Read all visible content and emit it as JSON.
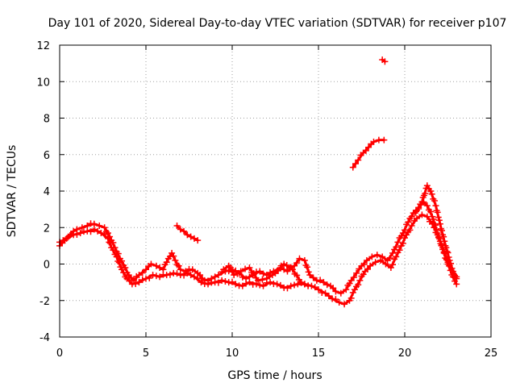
{
  "chart_data": {
    "type": "scatter",
    "title": "Day 101 of 2020, Sidereal Day-to-day VTEC variation (SDTVAR) for receiver p107",
    "xlabel": "GPS time / hours",
    "ylabel": "SDTVAR / TECUs",
    "xlim": [
      0,
      25
    ],
    "ylim": [
      -4,
      12
    ],
    "xticks": [
      0,
      5,
      10,
      15,
      20,
      25
    ],
    "yticks": [
      -4,
      -2,
      0,
      2,
      4,
      6,
      8,
      10,
      12
    ],
    "grid": true,
    "series_color": "#ff0000",
    "series": [
      {
        "name": "upper trace",
        "points": [
          [
            0.0,
            1.0
          ],
          [
            0.3,
            1.3
          ],
          [
            0.5,
            1.5
          ],
          [
            0.8,
            1.8
          ],
          [
            1.0,
            1.9
          ],
          [
            1.3,
            2.0
          ],
          [
            1.6,
            2.1
          ],
          [
            2.0,
            2.2
          ],
          [
            2.3,
            2.1
          ],
          [
            2.6,
            2.0
          ],
          [
            2.8,
            1.7
          ],
          [
            3.0,
            1.3
          ],
          [
            3.2,
            0.9
          ],
          [
            3.5,
            0.3
          ],
          [
            3.8,
            -0.2
          ],
          [
            4.0,
            -0.6
          ],
          [
            4.3,
            -0.9
          ],
          [
            4.6,
            -0.6
          ],
          [
            5.0,
            -0.3
          ],
          [
            5.3,
            0.0
          ],
          [
            5.6,
            -0.1
          ],
          [
            6.0,
            -0.3
          ],
          [
            6.3,
            0.3
          ],
          [
            6.5,
            0.6
          ],
          [
            6.7,
            0.2
          ],
          [
            7.0,
            -0.3
          ],
          [
            7.3,
            -0.4
          ],
          [
            7.7,
            -0.3
          ],
          [
            8.0,
            -0.5
          ],
          [
            8.4,
            -0.9
          ],
          [
            8.8,
            -0.8
          ],
          [
            9.2,
            -0.6
          ],
          [
            9.6,
            -0.4
          ],
          [
            10.0,
            -0.3
          ],
          [
            10.4,
            -0.5
          ],
          [
            10.8,
            -0.8
          ],
          [
            11.2,
            -0.6
          ],
          [
            11.6,
            -0.4
          ],
          [
            12.0,
            -0.6
          ],
          [
            12.4,
            -0.4
          ],
          [
            12.8,
            -0.2
          ],
          [
            13.2,
            -0.4
          ],
          [
            13.6,
            -0.1
          ],
          [
            13.9,
            0.3
          ],
          [
            14.2,
            0.2
          ],
          [
            14.5,
            -0.6
          ],
          [
            14.9,
            -0.9
          ],
          [
            15.3,
            -1.0
          ],
          [
            15.7,
            -1.2
          ],
          [
            16.0,
            -1.5
          ],
          [
            16.3,
            -1.6
          ],
          [
            16.6,
            -1.4
          ],
          [
            16.9,
            -0.9
          ],
          [
            17.2,
            -0.5
          ],
          [
            17.5,
            -0.1
          ],
          [
            17.8,
            0.2
          ],
          [
            18.1,
            0.4
          ],
          [
            18.4,
            0.5
          ],
          [
            18.7,
            0.4
          ],
          [
            19.0,
            0.2
          ],
          [
            19.3,
            0.6
          ],
          [
            19.6,
            1.2
          ],
          [
            19.9,
            1.7
          ],
          [
            20.2,
            2.3
          ],
          [
            20.5,
            2.8
          ],
          [
            20.8,
            3.1
          ],
          [
            21.1,
            3.4
          ],
          [
            21.3,
            3.2
          ],
          [
            21.6,
            2.6
          ],
          [
            21.9,
            1.7
          ],
          [
            22.2,
            0.8
          ],
          [
            22.5,
            0.0
          ],
          [
            22.8,
            -0.7
          ],
          [
            23.0,
            -1.1
          ]
        ]
      },
      {
        "name": "lower trace",
        "points": [
          [
            0.0,
            1.2
          ],
          [
            0.4,
            1.4
          ],
          [
            0.8,
            1.6
          ],
          [
            1.2,
            1.7
          ],
          [
            1.6,
            1.8
          ],
          [
            2.0,
            1.9
          ],
          [
            2.4,
            1.7
          ],
          [
            2.8,
            1.4
          ],
          [
            3.0,
            0.9
          ],
          [
            3.3,
            0.4
          ],
          [
            3.6,
            -0.3
          ],
          [
            3.9,
            -0.8
          ],
          [
            4.2,
            -1.1
          ],
          [
            4.6,
            -1.0
          ],
          [
            5.0,
            -0.8
          ],
          [
            5.4,
            -0.6
          ],
          [
            5.8,
            -0.7
          ],
          [
            6.2,
            -0.6
          ],
          [
            6.6,
            -0.5
          ],
          [
            7.0,
            -0.6
          ],
          [
            7.4,
            -0.5
          ],
          [
            7.8,
            -0.7
          ],
          [
            8.2,
            -1.0
          ],
          [
            8.6,
            -1.1
          ],
          [
            9.0,
            -1.0
          ],
          [
            9.4,
            -0.9
          ],
          [
            9.8,
            -1.0
          ],
          [
            10.2,
            -1.1
          ],
          [
            10.6,
            -1.2
          ],
          [
            11.0,
            -1.0
          ],
          [
            11.4,
            -1.1
          ],
          [
            11.8,
            -1.2
          ],
          [
            12.2,
            -1.0
          ],
          [
            12.6,
            -1.1
          ],
          [
            13.0,
            -1.3
          ],
          [
            13.4,
            -1.2
          ],
          [
            13.8,
            -1.1
          ],
          [
            14.2,
            -1.1
          ],
          [
            14.6,
            -1.2
          ],
          [
            15.0,
            -1.4
          ],
          [
            15.4,
            -1.6
          ],
          [
            15.8,
            -1.9
          ],
          [
            16.2,
            -2.1
          ],
          [
            16.5,
            -2.2
          ],
          [
            16.8,
            -2.0
          ],
          [
            17.1,
            -1.4
          ],
          [
            17.4,
            -0.9
          ],
          [
            17.7,
            -0.4
          ],
          [
            18.0,
            -0.1
          ],
          [
            18.3,
            0.1
          ],
          [
            18.6,
            0.2
          ],
          [
            18.9,
            0.0
          ],
          [
            19.2,
            -0.2
          ],
          [
            19.5,
            0.4
          ],
          [
            19.8,
            1.0
          ],
          [
            20.1,
            1.6
          ],
          [
            20.4,
            2.1
          ],
          [
            20.7,
            2.5
          ],
          [
            21.0,
            2.7
          ],
          [
            21.3,
            2.6
          ],
          [
            21.6,
            2.2
          ],
          [
            21.9,
            1.6
          ],
          [
            22.2,
            0.9
          ],
          [
            22.5,
            0.1
          ],
          [
            22.8,
            -0.5
          ],
          [
            23.0,
            -0.8
          ]
        ]
      },
      {
        "name": "sharp peak trace",
        "points": [
          [
            20.6,
            2.8
          ],
          [
            21.0,
            3.4
          ],
          [
            21.3,
            4.3
          ],
          [
            21.5,
            4.0
          ],
          [
            21.8,
            3.2
          ],
          [
            22.0,
            2.4
          ],
          [
            22.2,
            1.6
          ],
          [
            22.4,
            0.9
          ],
          [
            22.6,
            0.2
          ],
          [
            22.8,
            -0.4
          ],
          [
            23.0,
            -0.7
          ]
        ]
      },
      {
        "name": "short segment near 7-8 h",
        "points": [
          [
            6.8,
            2.1
          ],
          [
            7.0,
            1.9
          ],
          [
            7.2,
            1.8
          ],
          [
            7.4,
            1.6
          ],
          [
            7.6,
            1.5
          ],
          [
            7.8,
            1.4
          ],
          [
            8.0,
            1.3
          ]
        ]
      },
      {
        "name": "rising segment near 17-19 h",
        "points": [
          [
            17.0,
            5.3
          ],
          [
            17.3,
            5.7
          ],
          [
            17.6,
            6.1
          ],
          [
            17.9,
            6.4
          ],
          [
            18.2,
            6.7
          ],
          [
            18.5,
            6.8
          ],
          [
            18.8,
            6.8
          ]
        ]
      },
      {
        "name": "isolated outlier",
        "points": [
          [
            18.7,
            11.2
          ],
          [
            18.85,
            11.1
          ]
        ]
      },
      {
        "name": "mid-day wiggles",
        "points": [
          [
            9.5,
            -0.3
          ],
          [
            9.8,
            -0.1
          ],
          [
            10.1,
            -0.6
          ],
          [
            10.5,
            -0.4
          ],
          [
            11.0,
            -0.2
          ],
          [
            11.5,
            -0.9
          ],
          [
            12.0,
            -0.8
          ],
          [
            12.5,
            -0.5
          ],
          [
            13.0,
            0.0
          ],
          [
            13.5,
            -0.3
          ],
          [
            14.0,
            -1.0
          ],
          [
            14.4,
            -1.2
          ]
        ]
      }
    ]
  }
}
